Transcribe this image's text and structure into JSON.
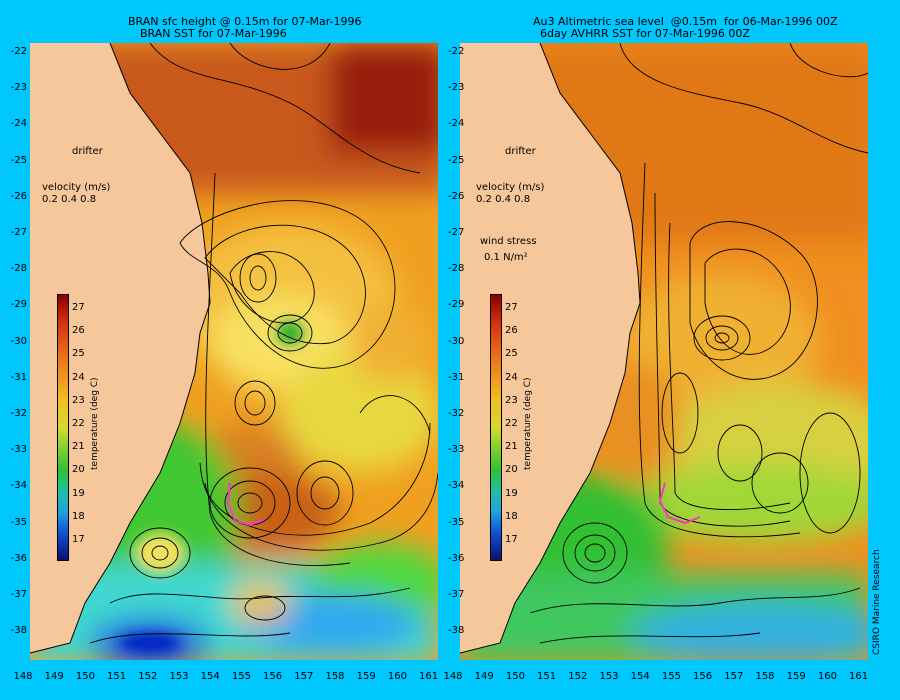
{
  "left": {
    "title_line1": "BRAN sfc height @ 0.15m for 07-Mar-1996",
    "title_line2": "BRAN SST for 07-Mar-1996",
    "drifter_label": "drifter",
    "velocity_label": "velocity (m/s)",
    "velocity_values": "0.2 0.4 0.8"
  },
  "right": {
    "title_line1": "Au3 Altimetric sea level  @0.15m  for 06-Mar-1996 00Z",
    "title_line2": "6day AVHRR SST for 07-Mar-1996 00Z",
    "drifter_label": "drifter",
    "velocity_label": "velocity (m/s)",
    "velocity_values": "0.2 0.4 0.8",
    "wind_label": "wind stress",
    "wind_value": "0.1 N/m²",
    "credit": "CSIRO Marine Research"
  },
  "colorbar": {
    "title": "temperature (deg C)",
    "ticks": [
      "27",
      "26",
      "25",
      "24",
      "23",
      "22",
      "21",
      "20",
      "19",
      "18",
      "17"
    ]
  },
  "axes": {
    "lat_labels": [
      "-22",
      "-23",
      "-24",
      "-25",
      "-26",
      "-27",
      "-28",
      "-29",
      "-30",
      "-31",
      "-32",
      "-33",
      "-34",
      "-35",
      "-36",
      "-37",
      "-38"
    ],
    "lon_labels": [
      "148",
      "149",
      "150",
      "151",
      "152",
      "153",
      "154",
      "155",
      "156",
      "157",
      "158",
      "159",
      "160",
      "161"
    ]
  },
  "colors": {
    "background": "#00c8ff",
    "land": "#f6c79b",
    "drifter": "#ff33cc"
  }
}
